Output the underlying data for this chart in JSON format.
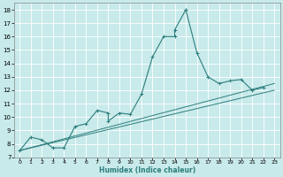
{
  "xlabel": "Humidex (Indice chaleur)",
  "bg_color": "#c8eaea",
  "grid_color": "#aad4d4",
  "line_color": "#2d7d7d",
  "xlim": [
    -0.5,
    23.5
  ],
  "ylim": [
    7,
    18.5
  ],
  "xticks": [
    0,
    1,
    2,
    3,
    4,
    5,
    6,
    7,
    8,
    9,
    10,
    11,
    12,
    13,
    14,
    15,
    16,
    17,
    18,
    19,
    20,
    21,
    22,
    23
  ],
  "yticks": [
    7,
    8,
    9,
    10,
    11,
    12,
    13,
    14,
    15,
    16,
    17,
    18
  ],
  "curve_x": [
    0,
    1,
    2,
    3,
    4,
    5,
    6,
    7,
    8,
    8,
    9,
    10,
    11,
    12,
    13,
    14,
    14,
    15,
    15,
    16,
    17,
    18,
    19,
    20,
    21,
    22
  ],
  "curve_y": [
    7.5,
    8.5,
    8.3,
    7.7,
    7.7,
    9.3,
    9.5,
    10.5,
    10.3,
    9.7,
    10.3,
    10.2,
    11.7,
    14.5,
    16.0,
    16.0,
    16.5,
    18.0,
    18.0,
    14.8,
    13.0,
    12.5,
    12.7,
    12.8,
    12.0,
    12.2
  ],
  "trend1_x": [
    0,
    23
  ],
  "trend1_y": [
    7.5,
    12.5
  ],
  "trend2_x": [
    0,
    23
  ],
  "trend2_y": [
    7.5,
    12.0
  ]
}
